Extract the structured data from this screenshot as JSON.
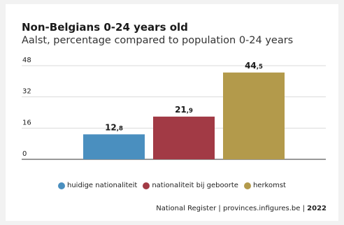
{
  "chart_data": {
    "type": "bar",
    "title": "Non-Belgians 0-24 years old",
    "subtitle": "Aalst, percentage compared to population 0-24 years",
    "categories": [
      "huidige nationaliteit",
      "nationaliteit bij geboorte",
      "herkomst"
    ],
    "values": [
      12.8,
      21.9,
      44.5
    ],
    "value_labels": [
      {
        "int": "12",
        "dec": ",8"
      },
      {
        "int": "21",
        "dec": ",9"
      },
      {
        "int": "44",
        "dec": ",5"
      }
    ],
    "colors": [
      "#4a8fbf",
      "#a23a45",
      "#b39a4b"
    ],
    "ylim": [
      0,
      48
    ],
    "yticks": [
      "0",
      "16",
      "32",
      "48"
    ],
    "grid": true,
    "legend_position": "bottom-center"
  },
  "source": {
    "text": "National Register | provinces.infigures.be | ",
    "year": "2022"
  }
}
